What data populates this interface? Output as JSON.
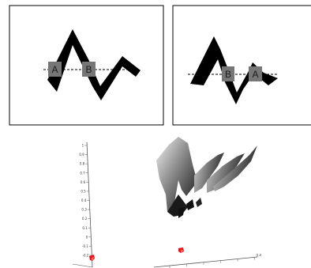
{
  "panels": [
    {
      "markers": [
        {
          "label": "A"
        },
        {
          "label": "B"
        }
      ]
    },
    {
      "markers": [
        {
          "label": "B"
        },
        {
          "label": "A"
        }
      ]
    }
  ],
  "plot3d": {
    "z_ticks": [
      "1",
      "0.9",
      "0.8",
      "0.7",
      "0.6",
      "0.5",
      "0.4",
      "0.3",
      "0.2",
      "0.1",
      "0",
      "-0.1",
      "-0.2"
    ],
    "x_ticks": [
      "",
      "",
      "",
      "",
      "",
      "0.4"
    ],
    "colors": {
      "line": "#000000",
      "marker_box": "#767676",
      "red_marker": "#ee1111"
    }
  }
}
